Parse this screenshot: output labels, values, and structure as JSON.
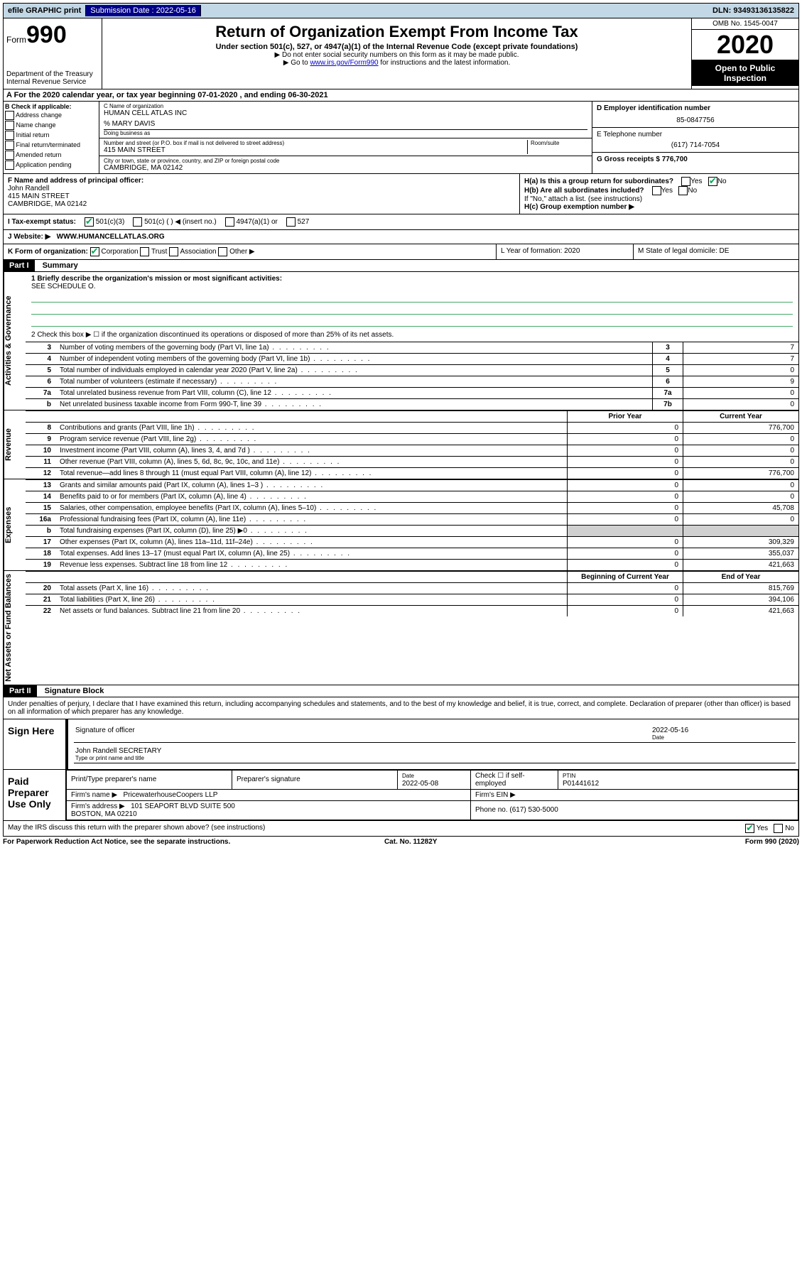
{
  "topbar": {
    "efile": "efile GRAPHIC print",
    "sub_label": "Submission Date : 2022-05-16",
    "dln": "DLN: 93493136135822"
  },
  "header": {
    "form_label": "Form",
    "form_num": "990",
    "dept": "Department of the Treasury\nInternal Revenue Service",
    "title": "Return of Organization Exempt From Income Tax",
    "sub": "Under section 501(c), 527, or 4947(a)(1) of the Internal Revenue Code (except private foundations)",
    "note1": "▶ Do not enter social security numbers on this form as it may be made public.",
    "note2_pre": "▶ Go to ",
    "note2_link": "www.irs.gov/Form990",
    "note2_post": " for instructions and the latest information.",
    "omb": "OMB No. 1545-0047",
    "year": "2020",
    "open": "Open to Public Inspection"
  },
  "row_a": "A For the 2020 calendar year, or tax year beginning 07-01-2020    , and ending 06-30-2021",
  "col_b": {
    "title": "B Check if applicable:",
    "opts": [
      "Address change",
      "Name change",
      "Initial return",
      "Final return/terminated",
      "Amended return",
      "Application pending"
    ]
  },
  "col_c": {
    "name_label": "C Name of organization",
    "name": "HUMAN CELL ATLAS INC",
    "care": "% MARY DAVIS",
    "dba_label": "Doing business as",
    "addr_label": "Number and street (or P.O. box if mail is not delivered to street address)",
    "room_label": "Room/suite",
    "addr": "415 MAIN STREET",
    "city_label": "City or town, state or province, country, and ZIP or foreign postal code",
    "city": "CAMBRIDGE, MA  02142"
  },
  "col_d": {
    "ein_label": "D Employer identification number",
    "ein": "85-0847756",
    "tel_label": "E Telephone number",
    "tel": "(617) 714-7054",
    "gross_label": "G Gross receipts $ 776,700"
  },
  "section_f": {
    "label": "F  Name and address of principal officer:",
    "name": "John Randell",
    "addr1": "415 MAIN STREET",
    "addr2": "CAMBRIDGE, MA  02142"
  },
  "section_h": {
    "ha": "H(a)  Is this a group return for subordinates?",
    "hb": "H(b)  Are all subordinates included?",
    "hb_note": "If \"No,\" attach a list. (see instructions)",
    "hc": "H(c)  Group exemption number ▶"
  },
  "tax_status": {
    "label": "I   Tax-exempt status:",
    "opt1": "501(c)(3)",
    "opt2": "501(c) (   ) ◀ (insert no.)",
    "opt3": "4947(a)(1) or",
    "opt4": "527"
  },
  "website": {
    "label": "J   Website: ▶",
    "value": "WWW.HUMANCELLATLAS.ORG"
  },
  "k_row": {
    "label": "K Form of organization:",
    "opts": [
      "Corporation",
      "Trust",
      "Association",
      "Other ▶"
    ],
    "l": "L Year of formation: 2020",
    "m": "M State of legal domicile: DE"
  },
  "part1": {
    "header": "Part I",
    "title": "Summary",
    "q1_label": "1  Briefly describe the organization's mission or most significant activities:",
    "q1_value": "SEE SCHEDULE O.",
    "q2": "2   Check this box ▶ ☐  if the organization discontinued its operations or disposed of more than 25% of its net assets.",
    "side_gov": "Activities & Governance",
    "side_rev": "Revenue",
    "side_exp": "Expenses",
    "side_net": "Net Assets or Fund Balances",
    "rows_gov": [
      {
        "n": "3",
        "desc": "Number of voting members of the governing body (Part VI, line 1a)",
        "box": "3",
        "val": "7"
      },
      {
        "n": "4",
        "desc": "Number of independent voting members of the governing body (Part VI, line 1b)",
        "box": "4",
        "val": "7"
      },
      {
        "n": "5",
        "desc": "Total number of individuals employed in calendar year 2020 (Part V, line 2a)",
        "box": "5",
        "val": "0"
      },
      {
        "n": "6",
        "desc": "Total number of volunteers (estimate if necessary)",
        "box": "6",
        "val": "9"
      },
      {
        "n": "7a",
        "desc": "Total unrelated business revenue from Part VIII, column (C), line 12",
        "box": "7a",
        "val": "0"
      },
      {
        "n": "b",
        "desc": "Net unrelated business taxable income from Form 990-T, line 39",
        "box": "7b",
        "val": "0"
      }
    ],
    "col_prior": "Prior Year",
    "col_curr": "Current Year",
    "rows_rev": [
      {
        "n": "8",
        "desc": "Contributions and grants (Part VIII, line 1h)",
        "p": "0",
        "c": "776,700"
      },
      {
        "n": "9",
        "desc": "Program service revenue (Part VIII, line 2g)",
        "p": "0",
        "c": "0"
      },
      {
        "n": "10",
        "desc": "Investment income (Part VIII, column (A), lines 3, 4, and 7d )",
        "p": "0",
        "c": "0"
      },
      {
        "n": "11",
        "desc": "Other revenue (Part VIII, column (A), lines 5, 6d, 8c, 9c, 10c, and 11e)",
        "p": "0",
        "c": "0"
      },
      {
        "n": "12",
        "desc": "Total revenue—add lines 8 through 11 (must equal Part VIII, column (A), line 12)",
        "p": "0",
        "c": "776,700"
      }
    ],
    "rows_exp": [
      {
        "n": "13",
        "desc": "Grants and similar amounts paid (Part IX, column (A), lines 1–3 )",
        "p": "0",
        "c": "0"
      },
      {
        "n": "14",
        "desc": "Benefits paid to or for members (Part IX, column (A), line 4)",
        "p": "0",
        "c": "0"
      },
      {
        "n": "15",
        "desc": "Salaries, other compensation, employee benefits (Part IX, column (A), lines 5–10)",
        "p": "0",
        "c": "45,708"
      },
      {
        "n": "16a",
        "desc": "Professional fundraising fees (Part IX, column (A), line 11e)",
        "p": "0",
        "c": "0"
      },
      {
        "n": "b",
        "desc": "Total fundraising expenses (Part IX, column (D), line 25) ▶0",
        "p": "",
        "c": "",
        "shade": true
      },
      {
        "n": "17",
        "desc": "Other expenses (Part IX, column (A), lines 11a–11d, 11f–24e)",
        "p": "0",
        "c": "309,329"
      },
      {
        "n": "18",
        "desc": "Total expenses. Add lines 13–17 (must equal Part IX, column (A), line 25)",
        "p": "0",
        "c": "355,037"
      },
      {
        "n": "19",
        "desc": "Revenue less expenses. Subtract line 18 from line 12",
        "p": "0",
        "c": "421,663"
      }
    ],
    "col_beg": "Beginning of Current Year",
    "col_end": "End of Year",
    "rows_net": [
      {
        "n": "20",
        "desc": "Total assets (Part X, line 16)",
        "p": "0",
        "c": "815,769"
      },
      {
        "n": "21",
        "desc": "Total liabilities (Part X, line 26)",
        "p": "0",
        "c": "394,106"
      },
      {
        "n": "22",
        "desc": "Net assets or fund balances. Subtract line 21 from line 20",
        "p": "0",
        "c": "421,663"
      }
    ]
  },
  "part2": {
    "header": "Part II",
    "title": "Signature Block",
    "decl": "Under penalties of perjury, I declare that I have examined this return, including accompanying schedules and statements, and to the best of my knowledge and belief, it is true, correct, and complete. Declaration of preparer (other than officer) is based on all information of which preparer has any knowledge.",
    "sign_here": "Sign Here",
    "sig_officer": "Signature of officer",
    "sig_date": "2022-05-16",
    "date_label": "Date",
    "sig_name": "John Randell SECRETARY",
    "sig_name_label": "Type or print name and title",
    "paid": "Paid Preparer Use Only",
    "prep_name_label": "Print/Type preparer's name",
    "prep_sig_label": "Preparer's signature",
    "prep_date_label": "Date",
    "prep_date": "2022-05-08",
    "prep_check": "Check ☐ if self-employed",
    "ptin_label": "PTIN",
    "ptin": "P01441612",
    "firm_name_label": "Firm's name    ▶",
    "firm_name": "PricewaterhouseCoopers LLP",
    "firm_ein_label": "Firm's EIN ▶",
    "firm_addr_label": "Firm's address ▶",
    "firm_addr": "101 SEAPORT BLVD SUITE 500\nBOSTON, MA  02210",
    "firm_phone_label": "Phone no.",
    "firm_phone": "(617) 530-5000",
    "discuss": "May the IRS discuss this return with the preparer shown above? (see instructions)"
  },
  "footer": {
    "left": "For Paperwork Reduction Act Notice, see the separate instructions.",
    "mid": "Cat. No. 11282Y",
    "right": "Form 990 (2020)"
  },
  "yes": "Yes",
  "no": "No"
}
